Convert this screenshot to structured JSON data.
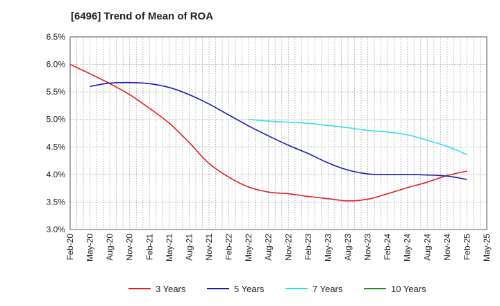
{
  "chart_data": {
    "type": "line",
    "title": "[6496]  Trend of Mean of ROA",
    "xlabel": "",
    "ylabel": "",
    "ylim": [
      3.0,
      6.5
    ],
    "yticks": [
      "3.0%",
      "3.5%",
      "4.0%",
      "4.5%",
      "5.0%",
      "5.5%",
      "6.0%",
      "6.5%"
    ],
    "categories": [
      "Feb-20",
      "May-20",
      "Aug-20",
      "Nov-20",
      "Feb-21",
      "May-21",
      "Aug-21",
      "Nov-21",
      "Feb-22",
      "May-22",
      "Aug-22",
      "Nov-22",
      "Feb-23",
      "May-23",
      "Aug-23",
      "Nov-23",
      "Feb-24",
      "May-24",
      "Aug-24",
      "Nov-24",
      "Feb-25",
      "May-25"
    ],
    "grid": true,
    "legend_position": "bottom",
    "series": [
      {
        "name": "3 Years",
        "color": "#e02020",
        "values": [
          6.0,
          5.83,
          5.65,
          5.45,
          5.2,
          4.93,
          4.58,
          4.2,
          3.95,
          3.77,
          3.68,
          3.65,
          3.6,
          3.56,
          3.52,
          3.55,
          3.65,
          3.76,
          3.86,
          3.98,
          4.06,
          null
        ]
      },
      {
        "name": "5 Years",
        "color": "#1a1ab8",
        "values": [
          null,
          5.6,
          5.66,
          5.67,
          5.65,
          5.58,
          5.45,
          5.28,
          5.08,
          4.88,
          4.7,
          4.53,
          4.38,
          4.21,
          4.08,
          4.01,
          4.0,
          4.0,
          3.99,
          3.97,
          3.91,
          null
        ]
      },
      {
        "name": "7 Years",
        "color": "#33e0e8",
        "values": [
          null,
          null,
          null,
          null,
          null,
          null,
          null,
          null,
          null,
          5.0,
          4.97,
          4.95,
          4.93,
          4.89,
          4.85,
          4.8,
          4.77,
          4.72,
          4.62,
          4.51,
          4.36,
          null
        ]
      },
      {
        "name": "10 Years",
        "color": "#228b22",
        "values": [
          null,
          null,
          null,
          null,
          null,
          null,
          null,
          null,
          null,
          null,
          null,
          null,
          null,
          null,
          null,
          null,
          null,
          null,
          null,
          null,
          null,
          null
        ]
      }
    ]
  }
}
